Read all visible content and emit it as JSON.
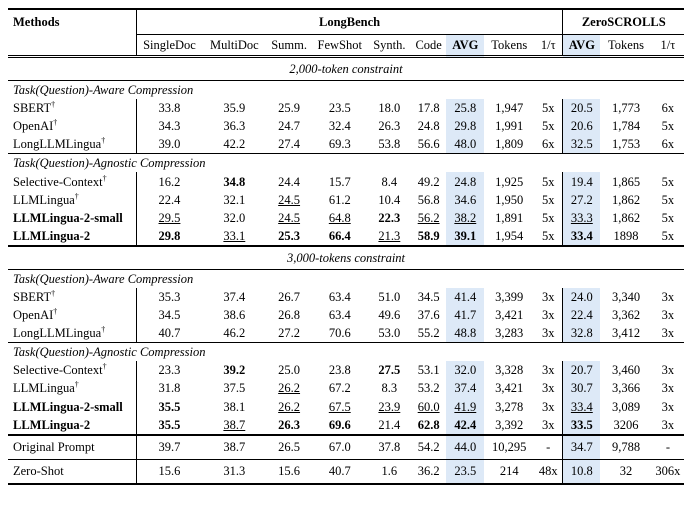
{
  "header": {
    "methods": "Methods",
    "groups": [
      "LongBench",
      "ZeroSCROLLS"
    ],
    "longbench_cols": [
      "SingleDoc",
      "MultiDoc",
      "Summ.",
      "FewShot",
      "Synth.",
      "Code",
      "AVG",
      "Tokens",
      "1/τ"
    ],
    "zeroscrolls_cols": [
      "AVG",
      "Tokens",
      "1/τ"
    ]
  },
  "dagger": "†",
  "blocks": [
    {
      "constraint": "2,000-token constraint",
      "sections": [
        {
          "title": "Task(Question)-Aware Compression",
          "rows": [
            {
              "method": "SBERT",
              "dag": true,
              "ours": false,
              "cells": [
                "33.8",
                "35.9",
                "25.9",
                "23.5",
                "18.0",
                "17.8",
                "25.8",
                "1,947",
                "5x",
                "20.5",
                "1,773",
                "6x"
              ]
            },
            {
              "method": "OpenAI",
              "dag": true,
              "ours": false,
              "cells": [
                "34.3",
                "36.3",
                "24.7",
                "32.4",
                "26.3",
                "24.8",
                "29.8",
                "1,991",
                "5x",
                "20.6",
                "1,784",
                "5x"
              ]
            },
            {
              "method": "LongLLMLingua",
              "dag": true,
              "ours": false,
              "cells": [
                "39.0",
                "42.2",
                "27.4",
                "69.3",
                "53.8",
                "56.6",
                "48.0",
                "1,809",
                "6x",
                "32.5",
                "1,753",
                "6x"
              ]
            }
          ]
        },
        {
          "title": "Task(Question)-Agnostic Compression",
          "rows": [
            {
              "method": "Selective-Context",
              "dag": true,
              "ours": false,
              "cells": [
                "16.2",
                "34.8",
                "24.4",
                "15.7",
                "8.4",
                "49.2",
                "24.8",
                "1,925",
                "5x",
                "19.4",
                "1,865",
                "5x"
              ]
            },
            {
              "method": "LLMLingua",
              "dag": true,
              "ours": false,
              "cells": [
                "22.4",
                "32.1",
                "24.5",
                "61.2",
                "10.4",
                "56.8",
                "34.6",
                "1,950",
                "5x",
                "27.2",
                "1,862",
                "5x"
              ]
            },
            {
              "method": "LLMLingua-2-small",
              "dag": false,
              "ours": true,
              "cells": [
                "29.5",
                "32.0",
                "24.5",
                "64.8",
                "22.3",
                "56.2",
                "38.2",
                "1,891",
                "5x",
                "33.3",
                "1,862",
                "5x"
              ]
            },
            {
              "method": "LLMLingua-2",
              "dag": false,
              "ours": true,
              "cells": [
                "29.8",
                "33.1",
                "25.3",
                "66.4",
                "21.3",
                "58.9",
                "39.1",
                "1,954",
                "5x",
                "33.4",
                "1898",
                "5x"
              ]
            }
          ]
        }
      ]
    },
    {
      "constraint": "3,000-tokens constraint",
      "sections": [
        {
          "title": "Task(Question)-Aware Compression",
          "rows": [
            {
              "method": "SBERT",
              "dag": true,
              "ours": false,
              "cells": [
                "35.3",
                "37.4",
                "26.7",
                "63.4",
                "51.0",
                "34.5",
                "41.4",
                "3,399",
                "3x",
                "24.0",
                "3,340",
                "3x"
              ]
            },
            {
              "method": "OpenAI",
              "dag": true,
              "ours": false,
              "cells": [
                "34.5",
                "38.6",
                "26.8",
                "63.4",
                "49.6",
                "37.6",
                "41.7",
                "3,421",
                "3x",
                "22.4",
                "3,362",
                "3x"
              ]
            },
            {
              "method": "LongLLMLingua",
              "dag": true,
              "ours": false,
              "cells": [
                "40.7",
                "46.2",
                "27.2",
                "70.6",
                "53.0",
                "55.2",
                "48.8",
                "3,283",
                "3x",
                "32.8",
                "3,412",
                "3x"
              ]
            }
          ]
        },
        {
          "title": "Task(Question)-Agnostic Compression",
          "rows": [
            {
              "method": "Selective-Context",
              "dag": true,
              "ours": false,
              "cells": [
                "23.3",
                "39.2",
                "25.0",
                "23.8",
                "27.5",
                "53.1",
                "32.0",
                "3,328",
                "3x",
                "20.7",
                "3,460",
                "3x"
              ]
            },
            {
              "method": "LLMLingua",
              "dag": true,
              "ours": false,
              "cells": [
                "31.8",
                "37.5",
                "26.2",
                "67.2",
                "8.3",
                "53.2",
                "37.4",
                "3,421",
                "3x",
                "30.7",
                "3,366",
                "3x"
              ]
            },
            {
              "method": "LLMLingua-2-small",
              "dag": false,
              "ours": true,
              "cells": [
                "35.5",
                "38.1",
                "26.2",
                "67.5",
                "23.9",
                "60.0",
                "41.9",
                "3,278",
                "3x",
                "33.4",
                "3,089",
                "3x"
              ]
            },
            {
              "method": "LLMLingua-2",
              "dag": false,
              "ours": true,
              "cells": [
                "35.5",
                "38.7",
                "26.3",
                "69.6",
                "21.4",
                "62.8",
                "42.4",
                "3,392",
                "3x",
                "33.5",
                "3206",
                "3x"
              ]
            }
          ]
        }
      ]
    }
  ],
  "footer_rows": [
    {
      "method": "Original Prompt",
      "cells": [
        "39.7",
        "38.7",
        "26.5",
        "67.0",
        "37.8",
        "54.2",
        "44.0",
        "10,295",
        "-",
        "34.7",
        "9,788",
        "-"
      ]
    },
    {
      "method": "Zero-Shot",
      "cells": [
        "15.6",
        "31.3",
        "15.6",
        "40.7",
        "1.6",
        "36.2",
        "23.5",
        "214",
        "48x",
        "10.8",
        "32",
        "306x"
      ]
    }
  ]
}
